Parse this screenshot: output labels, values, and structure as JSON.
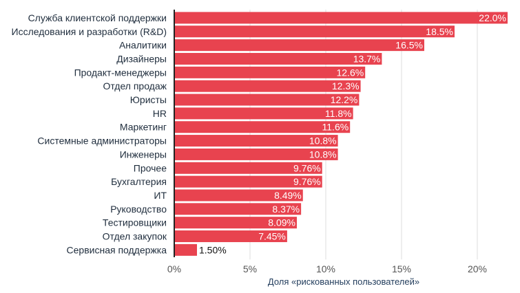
{
  "chart_data": {
    "type": "bar",
    "orientation": "horizontal",
    "title": "",
    "xlabel": "Доля «рискованных пользователей»",
    "ylabel": "",
    "xlim": [
      0,
      22
    ],
    "xticks": [
      0,
      5,
      10,
      15,
      20
    ],
    "xtick_labels": [
      "0%",
      "5%",
      "10%",
      "15%",
      "20%"
    ],
    "grid": true,
    "bar_color": "#e8434f",
    "categories": [
      "Служба клиентской поддержки",
      "Исследования и разработки (R&D)",
      "Аналитики",
      "Дизайнеры",
      "Продакт-менеджеры",
      "Отдел продаж",
      "Юристы",
      "HR",
      "Маркетинг",
      "Системные администраторы",
      "Инженеры",
      "Прочее",
      "Бухгалтерия",
      "ИТ",
      "Руководство",
      "Тестировщики",
      "Отдел закупок",
      "Сервисная поддержка"
    ],
    "values": [
      22.0,
      18.5,
      16.5,
      13.7,
      12.6,
      12.3,
      12.2,
      11.8,
      11.6,
      10.8,
      10.8,
      9.76,
      9.76,
      8.49,
      8.37,
      8.09,
      7.45,
      1.5
    ],
    "value_labels": [
      "22.0%",
      "18.5%",
      "16.5%",
      "13.7%",
      "12.6%",
      "12.3%",
      "12.2%",
      "11.8%",
      "11.6%",
      "10.8%",
      "10.8%",
      "9.76%",
      "9.76%",
      "8.49%",
      "8.37%",
      "8.09%",
      "7.45%",
      "1.50%"
    ]
  }
}
